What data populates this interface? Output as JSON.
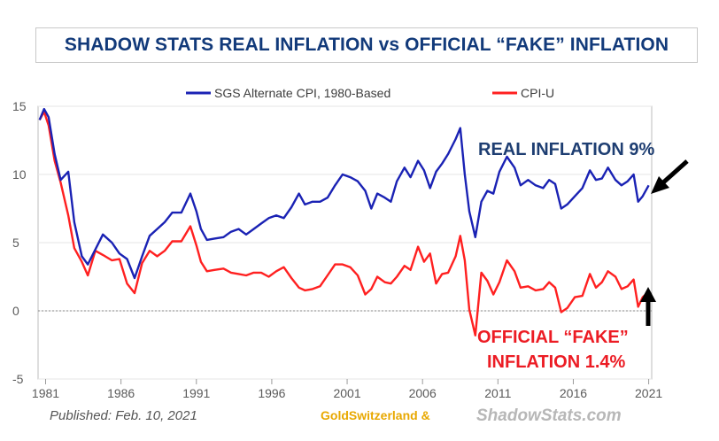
{
  "chart_data": {
    "type": "line",
    "title": "SHADOW STATS REAL INFLATION vs OFFICIAL “FAKE” INFLATION",
    "xlabel": "",
    "ylabel": "",
    "xlim": [
      1980.5,
      2021.2
    ],
    "ylim": [
      -5,
      15
    ],
    "x_ticks": [
      "1981",
      "1986",
      "1991",
      "1996",
      "2001",
      "2006",
      "2011",
      "2016",
      "2021"
    ],
    "x_tick_values": [
      1981,
      1986,
      1991,
      1996,
      2001,
      2006,
      2011,
      2016,
      2021
    ],
    "y_ticks": [
      "15",
      "10",
      "5",
      "0",
      "-5"
    ],
    "y_tick_values": [
      15,
      10,
      5,
      0,
      -5
    ],
    "legend_placement": "top-center",
    "series": [
      {
        "name": "SGS Alternate CPI, 1980-Based",
        "color": "#1a22b4",
        "points": [
          [
            1980.6,
            14.0
          ],
          [
            1980.9,
            14.8
          ],
          [
            1981.2,
            14.2
          ],
          [
            1981.6,
            11.5
          ],
          [
            1982.0,
            9.6
          ],
          [
            1982.5,
            10.2
          ],
          [
            1982.9,
            6.5
          ],
          [
            1983.4,
            4.0
          ],
          [
            1983.8,
            3.4
          ],
          [
            1984.3,
            4.5
          ],
          [
            1984.8,
            5.6
          ],
          [
            1985.4,
            5.0
          ],
          [
            1985.9,
            4.2
          ],
          [
            1986.4,
            3.8
          ],
          [
            1986.9,
            2.4
          ],
          [
            1987.4,
            4.0
          ],
          [
            1987.9,
            5.5
          ],
          [
            1988.4,
            6.0
          ],
          [
            1988.9,
            6.5
          ],
          [
            1989.4,
            7.2
          ],
          [
            1990.0,
            7.2
          ],
          [
            1990.6,
            8.6
          ],
          [
            1991.0,
            7.3
          ],
          [
            1991.3,
            6.0
          ],
          [
            1991.7,
            5.2
          ],
          [
            1992.2,
            5.3
          ],
          [
            1992.8,
            5.4
          ],
          [
            1993.3,
            5.8
          ],
          [
            1993.8,
            6.0
          ],
          [
            1994.3,
            5.6
          ],
          [
            1994.8,
            6.0
          ],
          [
            1995.3,
            6.4
          ],
          [
            1995.8,
            6.8
          ],
          [
            1996.3,
            7.0
          ],
          [
            1996.8,
            6.8
          ],
          [
            1997.3,
            7.6
          ],
          [
            1997.8,
            8.6
          ],
          [
            1998.2,
            7.8
          ],
          [
            1998.7,
            8.0
          ],
          [
            1999.2,
            8.0
          ],
          [
            1999.7,
            8.3
          ],
          [
            2000.2,
            9.2
          ],
          [
            2000.7,
            10.0
          ],
          [
            2001.2,
            9.8
          ],
          [
            2001.7,
            9.5
          ],
          [
            2002.2,
            8.8
          ],
          [
            2002.6,
            7.5
          ],
          [
            2003.0,
            8.6
          ],
          [
            2003.5,
            8.3
          ],
          [
            2003.9,
            8.0
          ],
          [
            2004.3,
            9.5
          ],
          [
            2004.8,
            10.5
          ],
          [
            2005.2,
            9.8
          ],
          [
            2005.7,
            11.0
          ],
          [
            2006.1,
            10.3
          ],
          [
            2006.5,
            9.0
          ],
          [
            2006.9,
            10.2
          ],
          [
            2007.3,
            10.8
          ],
          [
            2007.7,
            11.5
          ],
          [
            2008.2,
            12.6
          ],
          [
            2008.5,
            13.4
          ],
          [
            2008.8,
            10.0
          ],
          [
            2009.1,
            7.3
          ],
          [
            2009.5,
            5.4
          ],
          [
            2009.9,
            8.0
          ],
          [
            2010.3,
            8.8
          ],
          [
            2010.7,
            8.6
          ],
          [
            2011.1,
            10.2
          ],
          [
            2011.6,
            11.3
          ],
          [
            2012.1,
            10.5
          ],
          [
            2012.5,
            9.2
          ],
          [
            2013.0,
            9.6
          ],
          [
            2013.5,
            9.2
          ],
          [
            2014.0,
            9.0
          ],
          [
            2014.4,
            9.6
          ],
          [
            2014.8,
            9.3
          ],
          [
            2015.2,
            7.5
          ],
          [
            2015.6,
            7.8
          ],
          [
            2016.1,
            8.4
          ],
          [
            2016.6,
            9.0
          ],
          [
            2017.1,
            10.3
          ],
          [
            2017.5,
            9.6
          ],
          [
            2017.9,
            9.7
          ],
          [
            2018.3,
            10.5
          ],
          [
            2018.8,
            9.6
          ],
          [
            2019.2,
            9.2
          ],
          [
            2019.6,
            9.5
          ],
          [
            2020.0,
            10.0
          ],
          [
            2020.3,
            8.0
          ],
          [
            2020.6,
            8.4
          ],
          [
            2021.0,
            9.2
          ]
        ]
      },
      {
        "name": "CPI-U",
        "color": "#ff2020",
        "points": [
          [
            1980.6,
            14.0
          ],
          [
            1980.9,
            14.6
          ],
          [
            1981.2,
            13.6
          ],
          [
            1981.6,
            11.0
          ],
          [
            1982.0,
            9.4
          ],
          [
            1982.5,
            7.0
          ],
          [
            1982.9,
            4.6
          ],
          [
            1983.4,
            3.6
          ],
          [
            1983.8,
            2.6
          ],
          [
            1984.3,
            4.4
          ],
          [
            1984.8,
            4.1
          ],
          [
            1985.4,
            3.7
          ],
          [
            1985.9,
            3.8
          ],
          [
            1986.4,
            2.0
          ],
          [
            1986.9,
            1.3
          ],
          [
            1987.4,
            3.5
          ],
          [
            1987.9,
            4.4
          ],
          [
            1988.4,
            4.0
          ],
          [
            1988.9,
            4.4
          ],
          [
            1989.4,
            5.1
          ],
          [
            1990.0,
            5.1
          ],
          [
            1990.6,
            6.2
          ],
          [
            1991.0,
            4.8
          ],
          [
            1991.3,
            3.6
          ],
          [
            1991.7,
            2.9
          ],
          [
            1992.2,
            3.0
          ],
          [
            1992.8,
            3.1
          ],
          [
            1993.3,
            2.8
          ],
          [
            1993.8,
            2.7
          ],
          [
            1994.3,
            2.6
          ],
          [
            1994.8,
            2.8
          ],
          [
            1995.3,
            2.8
          ],
          [
            1995.8,
            2.5
          ],
          [
            1996.3,
            2.9
          ],
          [
            1996.8,
            3.2
          ],
          [
            1997.3,
            2.4
          ],
          [
            1997.8,
            1.7
          ],
          [
            1998.2,
            1.5
          ],
          [
            1998.7,
            1.6
          ],
          [
            1999.2,
            1.8
          ],
          [
            1999.7,
            2.6
          ],
          [
            2000.2,
            3.4
          ],
          [
            2000.7,
            3.4
          ],
          [
            2001.2,
            3.2
          ],
          [
            2001.7,
            2.6
          ],
          [
            2002.2,
            1.2
          ],
          [
            2002.6,
            1.6
          ],
          [
            2003.0,
            2.5
          ],
          [
            2003.5,
            2.1
          ],
          [
            2003.9,
            2.0
          ],
          [
            2004.3,
            2.5
          ],
          [
            2004.8,
            3.3
          ],
          [
            2005.2,
            3.0
          ],
          [
            2005.7,
            4.7
          ],
          [
            2006.1,
            3.6
          ],
          [
            2006.5,
            4.2
          ],
          [
            2006.9,
            2.0
          ],
          [
            2007.3,
            2.7
          ],
          [
            2007.7,
            2.8
          ],
          [
            2008.2,
            4.0
          ],
          [
            2008.5,
            5.5
          ],
          [
            2008.8,
            3.7
          ],
          [
            2009.1,
            0.1
          ],
          [
            2009.5,
            -1.8
          ],
          [
            2009.9,
            2.8
          ],
          [
            2010.3,
            2.2
          ],
          [
            2010.7,
            1.2
          ],
          [
            2011.1,
            2.1
          ],
          [
            2011.6,
            3.7
          ],
          [
            2012.1,
            2.9
          ],
          [
            2012.5,
            1.7
          ],
          [
            2013.0,
            1.8
          ],
          [
            2013.5,
            1.5
          ],
          [
            2014.0,
            1.6
          ],
          [
            2014.4,
            2.1
          ],
          [
            2014.8,
            1.7
          ],
          [
            2015.2,
            -0.1
          ],
          [
            2015.6,
            0.2
          ],
          [
            2016.1,
            1.0
          ],
          [
            2016.6,
            1.1
          ],
          [
            2017.1,
            2.7
          ],
          [
            2017.5,
            1.7
          ],
          [
            2017.9,
            2.1
          ],
          [
            2018.3,
            2.9
          ],
          [
            2018.8,
            2.5
          ],
          [
            2019.2,
            1.6
          ],
          [
            2019.6,
            1.8
          ],
          [
            2020.0,
            2.3
          ],
          [
            2020.3,
            0.3
          ],
          [
            2020.6,
            1.0
          ],
          [
            2021.0,
            1.4
          ]
        ]
      }
    ],
    "annotations": {
      "real_label": "REAL INFLATION 9%",
      "official_line1": "OFFICIAL “FAKE”",
      "official_line2": "INFLATION 1.4%"
    },
    "footer": {
      "published": "Published: Feb. 10, 2021",
      "brand_left": "GoldSwitzerland &",
      "brand_right": "ShadowStats.com"
    }
  }
}
